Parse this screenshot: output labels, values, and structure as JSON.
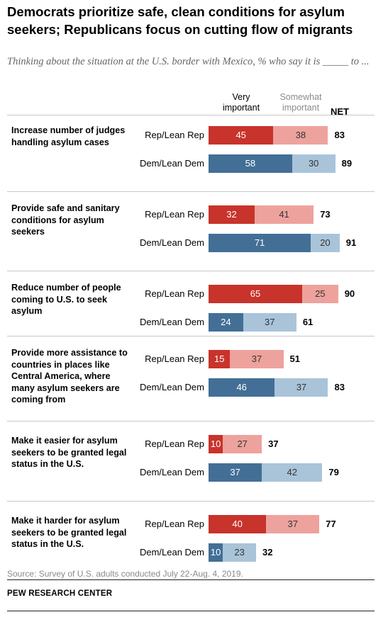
{
  "title": "Democrats prioritize safe, clean conditions for asylum seekers; Republicans focus on cutting flow of migrants",
  "subtitle": "Thinking about the situation at the U.S. border with Mexico, % who say it is _____ to ...",
  "legend": {
    "very": "Very important",
    "somewhat": "Somewhat important",
    "net": "NET"
  },
  "source": "Source: Survey of U.S. adults conducted July 22-Aug. 4, 2019.",
  "org": "PEW RESEARCH CENTER",
  "colors": {
    "rep_very": "#c8332b",
    "rep_some": "#eea29d",
    "dem_very": "#436f96",
    "dem_some": "#a9c4d9"
  },
  "chart_data": {
    "type": "bar",
    "stacked": true,
    "orientation": "horizontal",
    "title": "Democrats prioritize safe, clean conditions for asylum seekers; Republicans focus on cutting flow of migrants",
    "subtitle": "Thinking about the situation at the U.S. border with Mexico, % who say it is _____ to ...",
    "series_names": [
      "Very important",
      "Somewhat important"
    ],
    "net_label": "NET",
    "groups": [
      "Rep/Lean Rep",
      "Dem/Lean Dem"
    ],
    "categories": [
      {
        "label": "Increase number of judges handling asylum cases",
        "rows": [
          {
            "party": "Rep/Lean Rep",
            "very": 45,
            "somewhat": 38,
            "net": 83
          },
          {
            "party": "Dem/Lean Dem",
            "very": 58,
            "somewhat": 30,
            "net": 89
          }
        ]
      },
      {
        "label": "Provide safe and sanitary conditions for asylum seekers",
        "rows": [
          {
            "party": "Rep/Lean Rep",
            "very": 32,
            "somewhat": 41,
            "net": 73
          },
          {
            "party": "Dem/Lean Dem",
            "very": 71,
            "somewhat": 20,
            "net": 91
          }
        ]
      },
      {
        "label": "Reduce number of people coming to U.S. to seek asylum",
        "rows": [
          {
            "party": "Rep/Lean Rep",
            "very": 65,
            "somewhat": 25,
            "net": 90
          },
          {
            "party": "Dem/Lean Dem",
            "very": 24,
            "somewhat": 37,
            "net": 61
          }
        ]
      },
      {
        "label": "Provide more assistance to countries in places like Central America, where many asylum seekers are coming from",
        "rows": [
          {
            "party": "Rep/Lean Rep",
            "very": 15,
            "somewhat": 37,
            "net": 51
          },
          {
            "party": "Dem/Lean Dem",
            "very": 46,
            "somewhat": 37,
            "net": 83
          }
        ]
      },
      {
        "label": "Make it easier for asylum seekers to be granted legal status in the U.S.",
        "rows": [
          {
            "party": "Rep/Lean Rep",
            "very": 10,
            "somewhat": 27,
            "net": 37
          },
          {
            "party": "Dem/Lean Dem",
            "very": 37,
            "somewhat": 42,
            "net": 79
          }
        ]
      },
      {
        "label": "Make it harder for asylum seekers to be granted legal status in the U.S.",
        "rows": [
          {
            "party": "Rep/Lean Rep",
            "very": 40,
            "somewhat": 37,
            "net": 77
          },
          {
            "party": "Dem/Lean Dem",
            "very": 10,
            "somewhat": 23,
            "net": 32
          }
        ]
      }
    ]
  }
}
